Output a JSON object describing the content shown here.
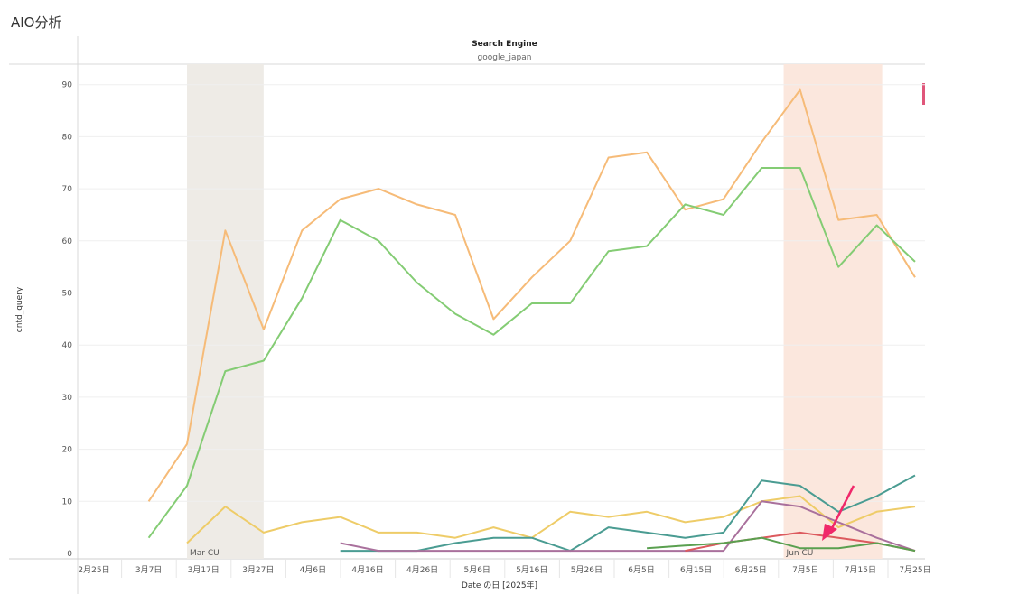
{
  "page": {
    "title": "AIO分析",
    "panel_title": "Search Engine",
    "panel_subtitle": "google_japan"
  },
  "colors": {
    "band_mar": "#eeebe6",
    "band_jun": "#fbe7dd",
    "arrow": "#f0286a"
  },
  "chart_data": {
    "type": "line",
    "title": "Search Engine",
    "subtitle": "google_japan",
    "xlabel": "Date の日 [2025年]",
    "ylabel": "cntd_query",
    "ylim": [
      0,
      92
    ],
    "yticks": [
      0,
      10,
      20,
      30,
      40,
      50,
      60,
      70,
      80,
      90
    ],
    "x_tick_labels": [
      "2月25日",
      "3月7日",
      "3月17日",
      "3月27日",
      "4月6日",
      "4月16日",
      "4月26日",
      "5月6日",
      "5月16日",
      "5月26日",
      "6月5日",
      "6月15日",
      "6月25日",
      "7月5日",
      "7月15日",
      "7月25日"
    ],
    "bands": [
      {
        "label": "Mar CU",
        "from": "3月13日",
        "to": "3月27日",
        "color": "#eeebe6"
      },
      {
        "label": "Jun CU",
        "from": "6月30日",
        "to": "7月18日",
        "color": "#fbe7dd"
      }
    ],
    "series": [
      {
        "name": "series-orange",
        "color": "#f6bb78",
        "points": [
          [
            10,
            10
          ],
          [
            17,
            21
          ],
          [
            24,
            62
          ],
          [
            31,
            43
          ],
          [
            38,
            62
          ],
          [
            45,
            68
          ],
          [
            52,
            70
          ],
          [
            59,
            67
          ],
          [
            66,
            65
          ],
          [
            73,
            45
          ],
          [
            80,
            53
          ],
          [
            87,
            60
          ],
          [
            94,
            76
          ],
          [
            101,
            77
          ],
          [
            108,
            66
          ],
          [
            115,
            68
          ],
          [
            122,
            79
          ],
          [
            129,
            89
          ],
          [
            136,
            64
          ],
          [
            143,
            65
          ],
          [
            150,
            53
          ]
        ]
      },
      {
        "name": "series-green",
        "color": "#84cc74",
        "points": [
          [
            10,
            3
          ],
          [
            17,
            13
          ],
          [
            24,
            35
          ],
          [
            31,
            37
          ],
          [
            38,
            49
          ],
          [
            45,
            64
          ],
          [
            52,
            60
          ],
          [
            59,
            52
          ],
          [
            66,
            46
          ],
          [
            73,
            42
          ],
          [
            80,
            48
          ],
          [
            87,
            48
          ],
          [
            94,
            58
          ],
          [
            101,
            59
          ],
          [
            108,
            67
          ],
          [
            115,
            65
          ],
          [
            122,
            74
          ],
          [
            129,
            74
          ],
          [
            136,
            55
          ],
          [
            143,
            63
          ],
          [
            150,
            56
          ]
        ]
      },
      {
        "name": "series-yellow",
        "color": "#eecc68",
        "points": [
          [
            17,
            2
          ],
          [
            24,
            9
          ],
          [
            31,
            4
          ],
          [
            38,
            6
          ],
          [
            45,
            7
          ],
          [
            52,
            4
          ],
          [
            59,
            4
          ],
          [
            66,
            3
          ],
          [
            73,
            5
          ],
          [
            80,
            3
          ],
          [
            87,
            8
          ],
          [
            94,
            7
          ],
          [
            101,
            8
          ],
          [
            108,
            6
          ],
          [
            115,
            7
          ],
          [
            122,
            10
          ],
          [
            129,
            11
          ],
          [
            136,
            5
          ],
          [
            143,
            8
          ],
          [
            150,
            9
          ]
        ]
      },
      {
        "name": "series-teal",
        "color": "#4a9c92",
        "points": [
          [
            45,
            0.5
          ],
          [
            52,
            0.5
          ],
          [
            59,
            0.5
          ],
          [
            66,
            2
          ],
          [
            73,
            3
          ],
          [
            80,
            3
          ],
          [
            87,
            0.5
          ],
          [
            94,
            5
          ],
          [
            101,
            4
          ],
          [
            108,
            3
          ],
          [
            115,
            4
          ],
          [
            122,
            14
          ],
          [
            129,
            13
          ],
          [
            136,
            8
          ],
          [
            143,
            11
          ],
          [
            150,
            15
          ]
        ]
      },
      {
        "name": "series-purple",
        "color": "#a9709c",
        "points": [
          [
            45,
            2
          ],
          [
            52,
            0.5
          ],
          [
            59,
            0.5
          ],
          [
            66,
            0.5
          ],
          [
            73,
            0.5
          ],
          [
            80,
            0.5
          ],
          [
            87,
            0.5
          ],
          [
            94,
            0.5
          ],
          [
            101,
            0.5
          ],
          [
            108,
            0.5
          ],
          [
            115,
            0.5
          ],
          [
            122,
            10
          ],
          [
            129,
            9
          ],
          [
            136,
            6
          ],
          [
            143,
            3
          ],
          [
            150,
            0.5
          ]
        ]
      },
      {
        "name": "series-red",
        "color": "#dc5a5e",
        "points": [
          [
            108,
            0.5
          ],
          [
            115,
            2
          ],
          [
            122,
            3
          ],
          [
            129,
            4
          ],
          [
            136,
            3
          ],
          [
            143,
            2
          ],
          [
            150,
            0.5
          ]
        ]
      },
      {
        "name": "series-darkgreen",
        "color": "#5aa050",
        "points": [
          [
            101,
            1
          ],
          [
            108,
            1.5
          ],
          [
            115,
            2
          ],
          [
            122,
            3
          ],
          [
            129,
            1
          ],
          [
            136,
            1
          ],
          [
            143,
            2
          ],
          [
            150,
            0.5
          ]
        ]
      }
    ]
  }
}
